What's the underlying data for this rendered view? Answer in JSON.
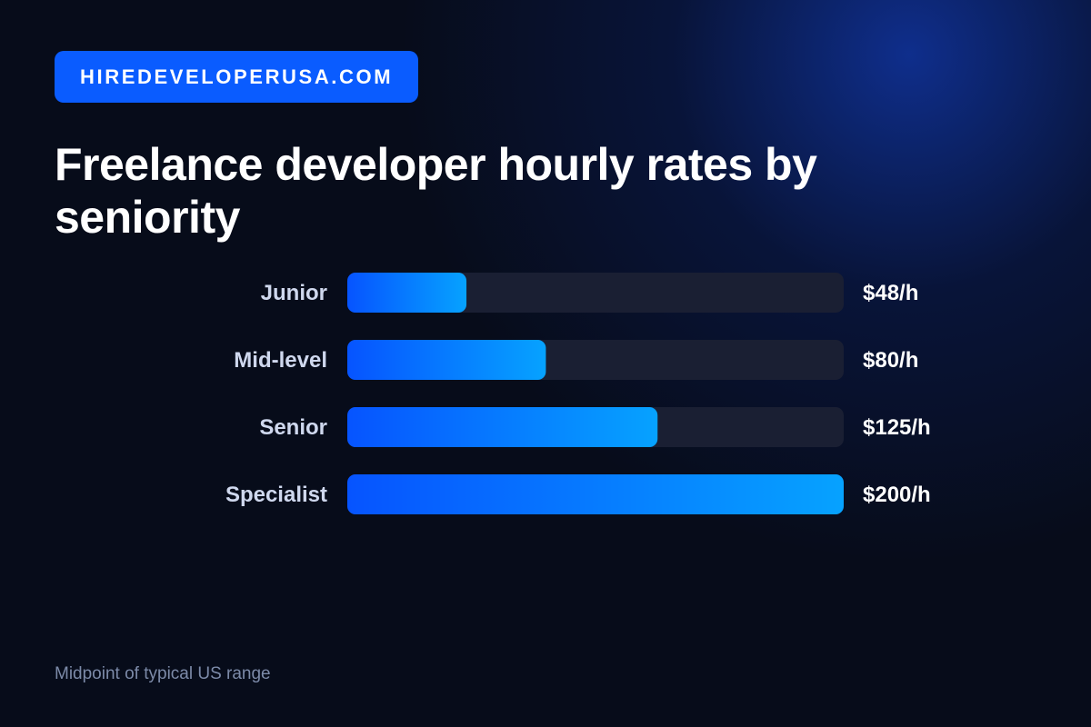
{
  "brand": {
    "badge_text": "HIREDEVELOPERUSA.COM",
    "accent": "#0a5cff"
  },
  "title": "Freelance developer hourly rates by seniority",
  "footnote": "Midpoint of typical US range",
  "colors": {
    "bar_start": "#0654ff",
    "bar_end": "#06a2ff",
    "track": "#1a1f33",
    "category_label": "#cfd8ee",
    "value_label": "#ffffff"
  },
  "chart_data": {
    "type": "bar",
    "orientation": "horizontal",
    "categories": [
      "Junior",
      "Mid-level",
      "Senior",
      "Specialist"
    ],
    "values": [
      48,
      80,
      125,
      200
    ],
    "value_labels": [
      "$48/h",
      "$80/h",
      "$125/h",
      "$200/h"
    ],
    "xlim": [
      0,
      200
    ],
    "grid": false
  }
}
